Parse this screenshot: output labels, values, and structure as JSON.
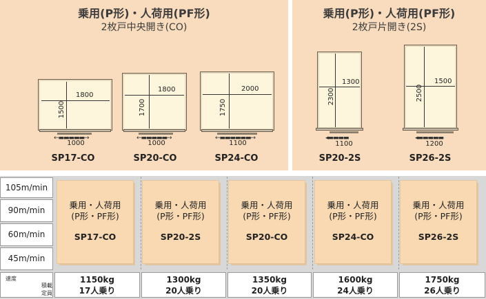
{
  "panel_co": {
    "title_line1": "乗用(P形)・人荷用(PF形)",
    "title_line2": "2枚戸中央開き(CO)"
  },
  "panel_2s": {
    "title_line1": "乗用(P形)・人荷用(PF形)",
    "title_line2": "2枚戸片開き(2S)"
  },
  "diagrams": [
    {
      "model": "SP17-CO",
      "width": "1800",
      "depth": "1500",
      "opening": "1000"
    },
    {
      "model": "SP20-CO",
      "width": "1800",
      "depth": "1700",
      "opening": "1000"
    },
    {
      "model": "SP24-CO",
      "width": "2000",
      "depth": "1750",
      "opening": "1100"
    },
    {
      "model": "SP20-2S",
      "width": "1300",
      "depth": "2300",
      "opening": "1100"
    },
    {
      "model": "SP26-2S",
      "width": "1500",
      "depth": "2500",
      "opening": "1200"
    }
  ],
  "speeds": [
    "105m/min",
    "90m/min",
    "60m/min",
    "45m/min"
  ],
  "footer_labels": {
    "speed": "速度",
    "capacity_line1": "積載",
    "capacity_line2": "定員"
  },
  "boxes": [
    {
      "line1": "乗用・人荷用",
      "line2": "(P形・PF形)",
      "model": "SP17-CO",
      "load": "1150kg",
      "persons": "17人乗り"
    },
    {
      "line1": "乗用・人荷用",
      "line2": "(P形・PF形)",
      "model": "SP20-2S",
      "load": "1300kg",
      "persons": "20人乗り"
    },
    {
      "line1": "乗用・人荷用",
      "line2": "(P形・PF形)",
      "model": "SP20-CO",
      "load": "1350kg",
      "persons": "20人乗り"
    },
    {
      "line1": "乗用・人荷用",
      "line2": "(P形・PF形)",
      "model": "SP24-CO",
      "load": "1600kg",
      "persons": "24人乗り"
    },
    {
      "line1": "乗用・人荷用",
      "line2": "(P形・PF形)",
      "model": "SP26-2S",
      "load": "1750kg",
      "persons": "26人乗り"
    }
  ],
  "colors": {
    "panel_bg": "#f8dcbd",
    "box_bg": "#f8d9b2",
    "car_fill": "#fdf6dc"
  }
}
